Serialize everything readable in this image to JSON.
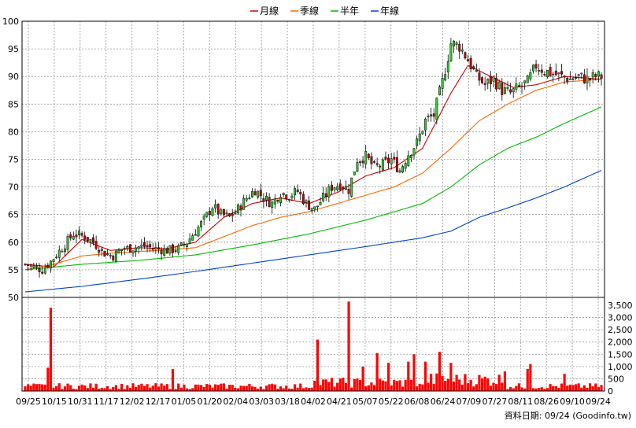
{
  "chart_data": {
    "type": "candlestick",
    "legend": [
      {
        "name": "月線",
        "color": "#cc0000"
      },
      {
        "name": "季線",
        "color": "#ff6600"
      },
      {
        "name": "半年",
        "color": "#00bb00"
      },
      {
        "name": "年線",
        "color": "#0044cc"
      }
    ],
    "legend_position": "top-center",
    "price_ylim": [
      50,
      100
    ],
    "price_ticks": [
      "100",
      "95",
      "90",
      "85",
      "80",
      "75",
      "70",
      "65",
      "60",
      "55",
      "50"
    ],
    "volume_ylim": [
      0,
      3500
    ],
    "volume_ticks": [
      "3,500",
      "3,000",
      "2,500",
      "2,000",
      "1,500",
      "1,000",
      "500",
      "0"
    ],
    "x_ticks": [
      "09/25",
      "10/15",
      "10/31",
      "11/17",
      "12/02",
      "12/17",
      "01/05",
      "01/20",
      "02/04",
      "03/03",
      "03/18",
      "04/02",
      "04/21",
      "05/07",
      "05/22",
      "06/08",
      "06/24",
      "07/09",
      "07/27",
      "08/11",
      "08/26",
      "09/10",
      "09/24"
    ],
    "grid": true,
    "colors": {
      "up": "#33cc33",
      "down": "#cc0000",
      "volume": "#ff0000"
    },
    "price_anchors": [
      [
        0,
        56
      ],
      [
        6,
        55
      ],
      [
        9,
        56.5
      ],
      [
        13,
        59
      ],
      [
        17,
        61.5
      ],
      [
        21,
        61
      ],
      [
        24,
        60
      ],
      [
        28,
        58
      ],
      [
        31,
        57.5
      ],
      [
        34,
        58.7
      ],
      [
        38,
        59
      ],
      [
        42,
        59.3
      ],
      [
        46,
        58.8
      ],
      [
        50,
        58.5
      ],
      [
        54,
        58.8
      ],
      [
        57,
        60
      ],
      [
        60,
        62
      ],
      [
        63,
        64
      ],
      [
        66,
        66.5
      ],
      [
        69,
        65
      ],
      [
        72,
        64.5
      ],
      [
        75,
        66
      ],
      [
        78,
        68
      ],
      [
        81,
        69.5
      ],
      [
        84,
        68
      ],
      [
        87,
        67
      ],
      [
        90,
        69
      ],
      [
        93,
        68.5
      ],
      [
        96,
        69.2
      ],
      [
        99,
        67
      ],
      [
        102,
        66
      ],
      [
        105,
        68
      ],
      [
        108,
        70
      ],
      [
        111,
        70.5
      ],
      [
        114,
        69.5
      ],
      [
        117,
        75
      ],
      [
        120,
        75.5
      ],
      [
        123,
        73.5
      ],
      [
        126,
        74
      ],
      [
        129,
        75
      ],
      [
        132,
        73
      ],
      [
        135,
        76
      ],
      [
        138,
        78
      ],
      [
        141,
        82
      ],
      [
        144,
        83
      ],
      [
        147,
        89
      ],
      [
        150,
        96
      ],
      [
        153,
        95.5
      ],
      [
        156,
        93
      ],
      [
        159,
        90
      ],
      [
        162,
        88.5
      ],
      [
        165,
        89.5
      ],
      [
        168,
        87.5
      ],
      [
        171,
        87
      ],
      [
        174,
        88
      ],
      [
        177,
        89
      ],
      [
        180,
        92
      ],
      [
        183,
        91
      ],
      [
        186,
        90.5
      ],
      [
        189,
        90
      ],
      [
        192,
        89.5
      ],
      [
        195,
        90
      ],
      [
        198,
        89.5
      ],
      [
        201,
        90
      ],
      [
        203,
        90
      ]
    ],
    "ma_monthly": [
      [
        0,
        56
      ],
      [
        10,
        55.5
      ],
      [
        20,
        60.5
      ],
      [
        30,
        58.5
      ],
      [
        40,
        59
      ],
      [
        50,
        58.8
      ],
      [
        60,
        60
      ],
      [
        70,
        64.5
      ],
      [
        80,
        67
      ],
      [
        90,
        68
      ],
      [
        100,
        67
      ],
      [
        110,
        69
      ],
      [
        120,
        72
      ],
      [
        130,
        73.5
      ],
      [
        140,
        77
      ],
      [
        150,
        87
      ],
      [
        156,
        92
      ],
      [
        164,
        90
      ],
      [
        172,
        88
      ],
      [
        180,
        88.5
      ],
      [
        190,
        90
      ],
      [
        203,
        89.5
      ]
    ],
    "ma_quarterly": [
      [
        0,
        55
      ],
      [
        10,
        56
      ],
      [
        20,
        57.5
      ],
      [
        30,
        58
      ],
      [
        40,
        58.3
      ],
      [
        50,
        58.6
      ],
      [
        60,
        59
      ],
      [
        70,
        61
      ],
      [
        80,
        63
      ],
      [
        90,
        64.5
      ],
      [
        100,
        65.5
      ],
      [
        110,
        67
      ],
      [
        120,
        68.5
      ],
      [
        130,
        70
      ],
      [
        140,
        72.5
      ],
      [
        150,
        77
      ],
      [
        160,
        82
      ],
      [
        170,
        85
      ],
      [
        180,
        87.5
      ],
      [
        190,
        89
      ],
      [
        203,
        89.5
      ]
    ],
    "ma_halfyear": [
      [
        0,
        55
      ],
      [
        20,
        56
      ],
      [
        40,
        56.7
      ],
      [
        60,
        57.7
      ],
      [
        80,
        59.5
      ],
      [
        100,
        61.5
      ],
      [
        120,
        64
      ],
      [
        140,
        67
      ],
      [
        150,
        70
      ],
      [
        160,
        74
      ],
      [
        170,
        77
      ],
      [
        180,
        79
      ],
      [
        190,
        81.5
      ],
      [
        203,
        84.5
      ]
    ],
    "ma_yearly": [
      [
        0,
        51
      ],
      [
        20,
        52
      ],
      [
        40,
        53.3
      ],
      [
        60,
        54.7
      ],
      [
        80,
        56.2
      ],
      [
        100,
        57.7
      ],
      [
        120,
        59.2
      ],
      [
        140,
        60.8
      ],
      [
        150,
        62
      ],
      [
        160,
        64.5
      ],
      [
        170,
        66.2
      ],
      [
        180,
        68
      ],
      [
        190,
        70
      ],
      [
        203,
        73
      ]
    ],
    "volume_spikes": [
      [
        8,
        950
      ],
      [
        9,
        3400
      ],
      [
        52,
        900
      ],
      [
        103,
        2100
      ],
      [
        114,
        3650
      ],
      [
        124,
        1550
      ],
      [
        128,
        1150
      ],
      [
        119,
        1000
      ],
      [
        135,
        1200
      ],
      [
        137,
        1500
      ],
      [
        141,
        1200
      ],
      [
        146,
        1600
      ],
      [
        150,
        1150
      ],
      [
        169,
        800
      ],
      [
        177,
        900
      ],
      [
        178,
        1100
      ],
      [
        190,
        700
      ]
    ],
    "footer": "資料日期: 09/24  (Goodinfo.tw)"
  }
}
